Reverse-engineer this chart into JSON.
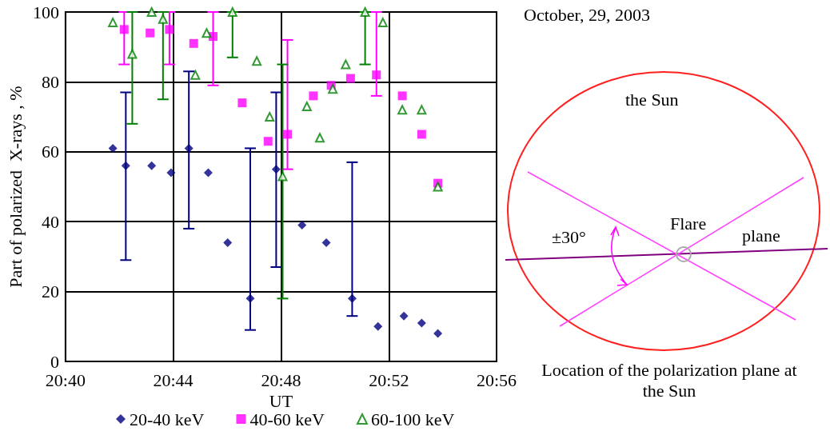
{
  "chart_data": {
    "type": "scatter",
    "xlabel": "UT",
    "ylabel": "Part of polarized  X-rays , %",
    "xlim": [
      20.6667,
      20.9333
    ],
    "ylim": [
      0,
      100
    ],
    "xticks": [
      {
        "value": 20.6667,
        "label": "20:40"
      },
      {
        "value": 20.7333,
        "label": "20:44"
      },
      {
        "value": 20.8,
        "label": "20:48"
      },
      {
        "value": 20.8667,
        "label": "20:52"
      },
      {
        "value": 20.9333,
        "label": "20:56"
      }
    ],
    "yticks": [
      0,
      20,
      40,
      60,
      80,
      100
    ],
    "grid": true,
    "legend": "bottom",
    "series": [
      {
        "name": "20-40 keV",
        "color": "#000080",
        "marker": "diamond",
        "x": [
          20.696,
          20.704,
          20.72,
          20.732,
          20.743,
          20.755,
          20.767,
          20.781,
          20.797,
          20.813,
          20.828,
          20.844,
          20.86,
          20.876,
          20.887,
          20.897
        ],
        "values": [
          61,
          56,
          56,
          54,
          61,
          54,
          34,
          18,
          55,
          39,
          34,
          18,
          10,
          13,
          11,
          8
        ],
        "errors": [
          null,
          [
            29,
            77
          ],
          null,
          null,
          [
            38,
            83
          ],
          null,
          null,
          [
            9,
            61
          ],
          [
            27,
            77
          ],
          null,
          null,
          [
            13,
            57
          ],
          null,
          null,
          null,
          null
        ]
      },
      {
        "name": "40-60 keV",
        "color": "#ff00ff",
        "marker": "square",
        "x": [
          20.703,
          20.719,
          20.731,
          20.746,
          20.758,
          20.776,
          20.792,
          20.804,
          20.82,
          20.831,
          20.843,
          20.859,
          20.875,
          20.887,
          20.897
        ],
        "values": [
          95,
          94,
          95,
          91,
          93,
          74,
          63,
          65,
          76,
          79,
          81,
          82,
          76,
          65,
          51
        ],
        "errors": [
          [
            85,
            100
          ],
          null,
          [
            85,
            100
          ],
          null,
          [
            79,
            100
          ],
          null,
          null,
          [
            55,
            92
          ],
          null,
          null,
          null,
          [
            76,
            100
          ],
          null,
          null,
          null
        ]
      },
      {
        "name": "60-100 keV",
        "color": "#008000",
        "marker": "triangle",
        "x": [
          20.696,
          20.708,
          20.72,
          20.727,
          20.747,
          20.754,
          20.77,
          20.785,
          20.793,
          20.801,
          20.816,
          20.824,
          20.832,
          20.84,
          20.852,
          20.863,
          20.875,
          20.887,
          20.897
        ],
        "values": [
          97,
          88,
          100,
          98,
          82,
          94,
          100,
          86,
          70,
          53,
          73,
          64,
          78,
          85,
          100,
          97,
          72,
          72,
          50
        ],
        "errors": [
          null,
          [
            68,
            100
          ],
          null,
          [
            75,
            100
          ],
          null,
          null,
          [
            87,
            100
          ],
          null,
          null,
          [
            18,
            85
          ],
          null,
          null,
          null,
          null,
          [
            85,
            100
          ],
          null,
          null,
          null,
          null
        ]
      }
    ],
    "annotations": [
      "October, 29, 2003",
      "the Sun",
      "Flare",
      "plane",
      "±30°",
      "Location of the polarization plane at the Sun"
    ]
  }
}
